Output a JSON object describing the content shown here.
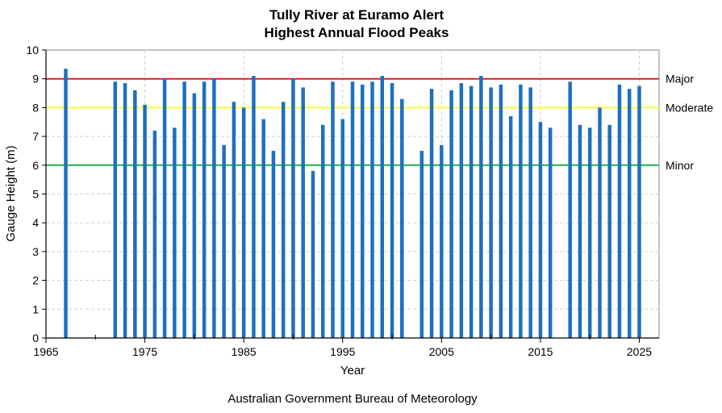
{
  "chart_data": {
    "type": "bar",
    "title": "Tully River at Euramo Alert",
    "subtitle": "Highest Annual Flood Peaks",
    "xlabel": "Year",
    "ylabel": "Gauge Height (m)",
    "xlim": [
      1965,
      2027
    ],
    "ylim": [
      0,
      10
    ],
    "x_ticks": [
      1965,
      1975,
      1985,
      1995,
      2005,
      2015,
      2025
    ],
    "y_ticks": [
      0,
      1,
      2,
      3,
      4,
      5,
      6,
      7,
      8,
      9,
      10
    ],
    "grid": true,
    "bar_color": "#1f6fbf",
    "x": [
      1967,
      1972,
      1973,
      1974,
      1975,
      1976,
      1977,
      1978,
      1979,
      1980,
      1981,
      1982,
      1983,
      1984,
      1985,
      1986,
      1987,
      1988,
      1989,
      1990,
      1991,
      1992,
      1993,
      1994,
      1995,
      1996,
      1997,
      1998,
      1999,
      2000,
      2001,
      2003,
      2004,
      2005,
      2006,
      2007,
      2008,
      2009,
      2010,
      2011,
      2012,
      2013,
      2014,
      2015,
      2016,
      2018,
      2019,
      2020,
      2021,
      2022,
      2023,
      2024,
      2025
    ],
    "values": [
      9.35,
      8.9,
      8.85,
      8.6,
      8.1,
      7.2,
      9.0,
      7.3,
      8.9,
      8.5,
      8.9,
      9.0,
      6.7,
      8.2,
      8.0,
      9.1,
      7.6,
      6.5,
      8.2,
      9.0,
      8.7,
      5.8,
      7.4,
      8.9,
      7.6,
      8.9,
      8.8,
      8.9,
      9.1,
      8.85,
      8.3,
      6.5,
      8.65,
      6.7,
      8.6,
      8.85,
      8.75,
      9.1,
      8.7,
      8.8,
      7.7,
      8.8,
      8.7,
      7.5,
      7.3,
      8.9,
      7.4,
      7.3,
      8.0,
      7.4,
      8.8,
      8.65,
      8.75
    ],
    "thresholds": [
      {
        "name": "Major",
        "value": 9,
        "color": "#e0202a"
      },
      {
        "name": "Moderate",
        "value": 8,
        "color": "#ffff33"
      },
      {
        "name": "Minor",
        "value": 6,
        "color": "#22b04a"
      }
    ],
    "footer": "Australian Government Bureau of Meteorology"
  }
}
